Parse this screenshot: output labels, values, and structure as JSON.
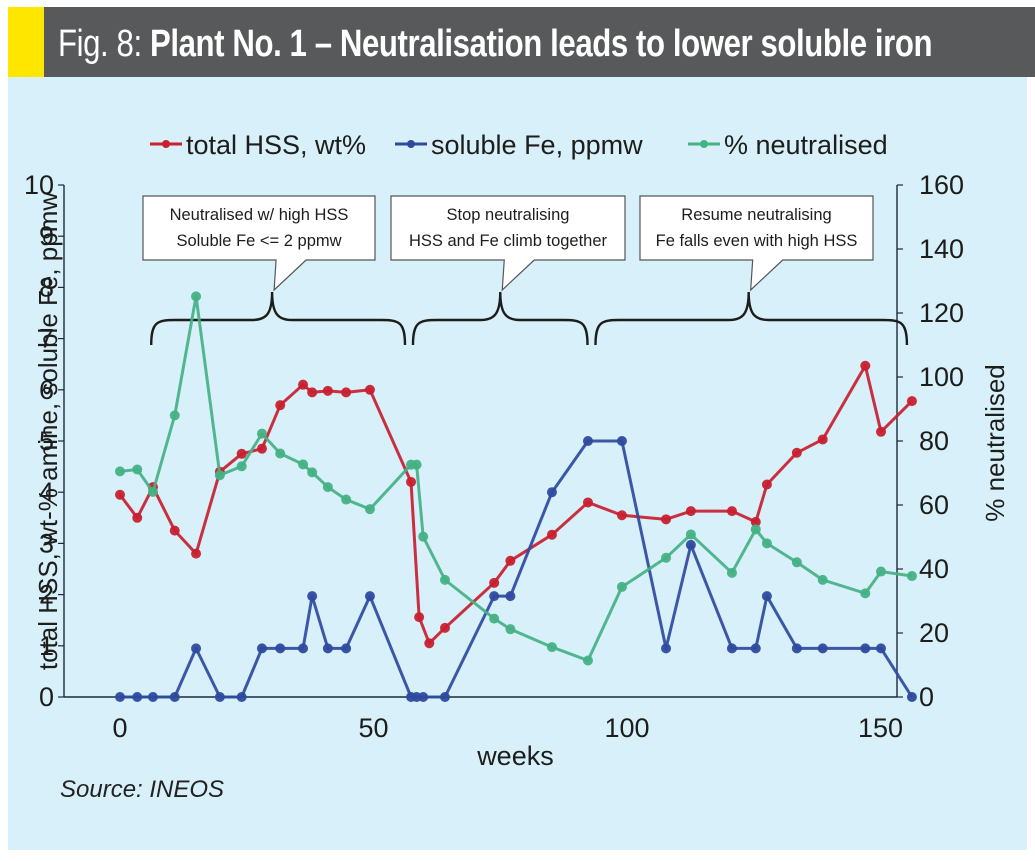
{
  "header": {
    "fig_label": "Fig. 8: ",
    "title": "Plant No. 1 – Neutralisation leads to lower soluble iron",
    "accent_color": "#ffe600",
    "background_color": "#58595b"
  },
  "source": "Source: INEOS",
  "chart_data": {
    "type": "line",
    "title": "Plant No. 1 – Neutralisation leads to lower soluble iron",
    "xlabel": "weeks",
    "ylabel": "total HSS, wt-% amine, soluble Fe, ppmw",
    "y2label": "% neutralised",
    "xlim": [
      0,
      156
    ],
    "ylim": [
      0,
      10
    ],
    "y2lim": [
      0,
      160
    ],
    "xticks": [
      0,
      50,
      100,
      150
    ],
    "yticks": [
      0,
      1,
      2,
      3,
      4,
      5,
      6,
      7,
      8,
      9,
      10
    ],
    "y2ticks": [
      0,
      20,
      40,
      60,
      80,
      100,
      120,
      140,
      160
    ],
    "grid": false,
    "legend_position": "top",
    "series": [
      {
        "name": "total HSS, wt%",
        "axis": "left",
        "color": "#c8202f",
        "x": [
          0,
          3.4,
          6.5,
          10.8,
          15,
          19.7,
          24,
          28,
          31.6,
          36.1,
          37.9,
          41,
          44.6,
          49.3,
          57.4,
          59,
          61,
          64.1,
          73.8,
          77,
          85.2,
          92.3,
          99,
          107.7,
          112.6,
          120.7,
          125.4,
          127.6,
          133.5,
          138.6,
          147,
          150.1,
          156.2
        ],
        "y": [
          3.95,
          3.5,
          4.1,
          3.25,
          2.8,
          4.4,
          4.75,
          4.85,
          5.7,
          6.1,
          5.95,
          5.98,
          5.95,
          6.0,
          4.2,
          1.56,
          1.05,
          1.35,
          2.23,
          2.66,
          3.17,
          3.8,
          3.55,
          3.47,
          3.63,
          3.63,
          3.42,
          4.15,
          4.77,
          5.03,
          6.47,
          5.18,
          5.78
        ]
      },
      {
        "name": "soluble Fe, ppmw",
        "axis": "left",
        "color": "#2e4a9e",
        "x": [
          0,
          3.4,
          6.5,
          10.8,
          15,
          19.7,
          24,
          28,
          31.6,
          36.1,
          37.9,
          41,
          44.6,
          49.3,
          57.4,
          58.5,
          59.8,
          64.1,
          73.8,
          77,
          85.2,
          92.3,
          99,
          107.7,
          112.6,
          120.7,
          125.4,
          127.6,
          133.5,
          138.6,
          147,
          150.1,
          156.2
        ],
        "y": [
          0,
          0,
          0,
          0,
          0.95,
          0,
          0,
          0.95,
          0.95,
          0.95,
          1.97,
          0.95,
          0.95,
          1.97,
          0,
          0,
          0,
          0,
          1.97,
          1.97,
          4.0,
          5.0,
          5.0,
          0.95,
          2.97,
          0.95,
          0.95,
          1.97,
          0.95,
          0.95,
          0.95,
          0.95,
          0
        ]
      },
      {
        "name": "% neutralised",
        "axis": "right",
        "color": "#45b184",
        "x": [
          0,
          3.4,
          6.5,
          10.8,
          15,
          19.7,
          24,
          28,
          31.6,
          36.1,
          37.9,
          41,
          44.6,
          49.3,
          57.4,
          58.5,
          59.8,
          64.1,
          73.8,
          77,
          85.2,
          92.3,
          99,
          107.7,
          112.6,
          120.7,
          125.4,
          127.6,
          133.5,
          138.6,
          147,
          150.1,
          156.2
        ],
        "y": [
          70.5,
          71.1,
          64.1,
          88,
          125.2,
          69.3,
          72.1,
          82.3,
          76.1,
          72.7,
          70.2,
          65.6,
          61.7,
          58.7,
          72.6,
          72.6,
          50.1,
          36.6,
          24.5,
          21.2,
          15.6,
          11.4,
          34.4,
          43.5,
          50.8,
          38.8,
          52.4,
          48,
          42.1,
          36.6,
          32.4,
          39.2,
          37.8
        ]
      }
    ],
    "annotations": [
      {
        "lines": [
          "Neutralised w/ high HSS",
          "Soluble Fe <= 2 ppmw"
        ],
        "range": [
          3,
          57
        ],
        "pointer_week": 30
      },
      {
        "lines": [
          "Stop neutralising",
          "HSS and Fe climb together"
        ],
        "range": [
          57,
          93
        ],
        "pointer_week": 75
      },
      {
        "lines": [
          "Resume neutralising",
          "Fe falls even with high HSS"
        ],
        "range": [
          93,
          156
        ],
        "pointer_week": 124
      }
    ]
  }
}
